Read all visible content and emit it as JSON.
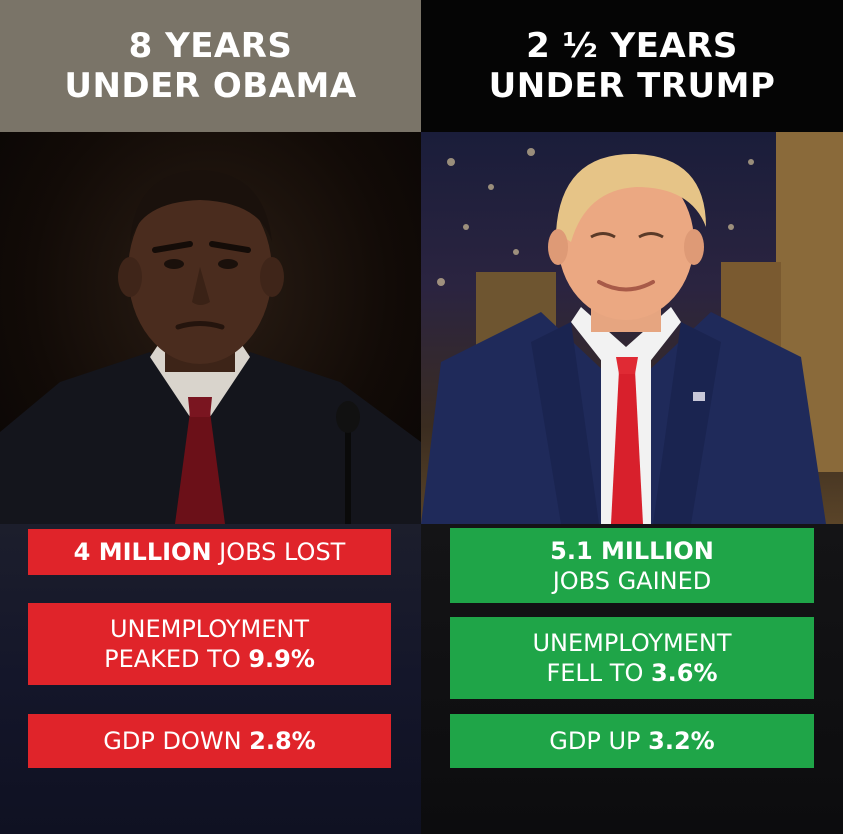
{
  "left": {
    "header": {
      "line1": "8 YEARS",
      "line2": "UNDER OBAMA"
    },
    "stats": {
      "jobs": {
        "bold": "4 MILLION",
        "rest": " JOBS LOST"
      },
      "unemployment": {
        "line1": "UNEMPLOYMENT",
        "line2_prefix": "PEAKED TO ",
        "line2_bold": "9.9%"
      },
      "gdp": {
        "prefix": "GDP DOWN ",
        "bold": "2.8%"
      }
    },
    "color": "#e0242a"
  },
  "right": {
    "header": {
      "line1": "2 ½ YEARS",
      "line2": "UNDER TRUMP"
    },
    "stats": {
      "jobs": {
        "bold": "5.1 MILLION",
        "line2": "JOBS GAINED"
      },
      "unemployment": {
        "line1": "UNEMPLOYMENT",
        "line2_prefix": "FELL TO ",
        "line2_bold": "3.6%"
      },
      "gdp": {
        "prefix": "GDP UP ",
        "bold": "3.2%"
      }
    },
    "color": "#1fa548"
  }
}
